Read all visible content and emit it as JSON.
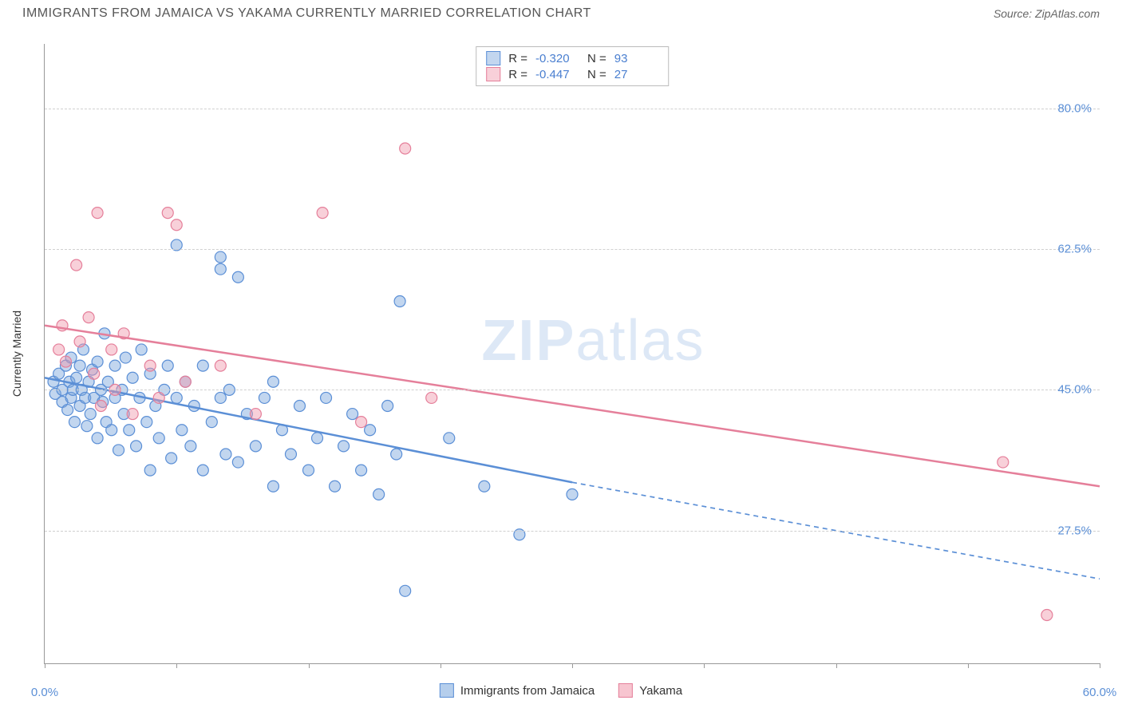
{
  "title": "IMMIGRANTS FROM JAMAICA VS YAKAMA CURRENTLY MARRIED CORRELATION CHART",
  "source": "Source: ZipAtlas.com",
  "watermark_bold": "ZIP",
  "watermark_light": "atlas",
  "y_axis_label": "Currently Married",
  "chart": {
    "type": "scatter",
    "xlim": [
      0,
      60
    ],
    "ylim": [
      11,
      88
    ],
    "x_ticks": [
      0,
      7.5,
      15,
      22.5,
      30,
      37.5,
      45,
      52.5,
      60
    ],
    "x_tick_labels": {
      "0": "0.0%",
      "60": "60.0%"
    },
    "y_gridlines": [
      27.5,
      45.0,
      62.5,
      80.0
    ],
    "y_tick_labels": [
      "27.5%",
      "45.0%",
      "62.5%",
      "80.0%"
    ],
    "background": "#ffffff",
    "grid_color": "#d0d0d0",
    "axis_color": "#999999",
    "point_radius": 7,
    "series": [
      {
        "name": "Immigrants from Jamaica",
        "color_fill": "rgba(120,165,220,0.45)",
        "color_stroke": "#5b8fd6",
        "r_label": "-0.320",
        "n_label": "93",
        "trend": {
          "solid": {
            "x1": 0,
            "y1": 46.5,
            "x2": 30,
            "y2": 33.5
          },
          "dashed": {
            "x1": 30,
            "y1": 33.5,
            "x2": 60,
            "y2": 21.5
          },
          "width": 2.5
        },
        "points": [
          [
            0.5,
            46
          ],
          [
            0.6,
            44.5
          ],
          [
            0.8,
            47
          ],
          [
            1.0,
            45
          ],
          [
            1.0,
            43.5
          ],
          [
            1.2,
            48
          ],
          [
            1.3,
            42.5
          ],
          [
            1.4,
            46
          ],
          [
            1.5,
            44
          ],
          [
            1.5,
            49
          ],
          [
            1.6,
            45
          ],
          [
            1.7,
            41
          ],
          [
            1.8,
            46.5
          ],
          [
            2.0,
            43
          ],
          [
            2.0,
            48
          ],
          [
            2.1,
            45
          ],
          [
            2.2,
            50
          ],
          [
            2.3,
            44
          ],
          [
            2.4,
            40.5
          ],
          [
            2.5,
            46
          ],
          [
            2.6,
            42
          ],
          [
            2.7,
            47.5
          ],
          [
            2.8,
            44
          ],
          [
            3.0,
            48.5
          ],
          [
            3.0,
            39
          ],
          [
            3.2,
            45
          ],
          [
            3.3,
            43.5
          ],
          [
            3.4,
            52
          ],
          [
            3.5,
            41
          ],
          [
            3.6,
            46
          ],
          [
            3.8,
            40
          ],
          [
            4.0,
            48
          ],
          [
            4.0,
            44
          ],
          [
            4.2,
            37.5
          ],
          [
            4.4,
            45
          ],
          [
            4.5,
            42
          ],
          [
            4.6,
            49
          ],
          [
            4.8,
            40
          ],
          [
            5.0,
            46.5
          ],
          [
            5.2,
            38
          ],
          [
            5.4,
            44
          ],
          [
            5.5,
            50
          ],
          [
            5.8,
            41
          ],
          [
            6.0,
            47
          ],
          [
            6.0,
            35
          ],
          [
            6.3,
            43
          ],
          [
            6.5,
            39
          ],
          [
            6.8,
            45
          ],
          [
            7.0,
            48
          ],
          [
            7.2,
            36.5
          ],
          [
            7.5,
            44
          ],
          [
            7.5,
            63
          ],
          [
            7.8,
            40
          ],
          [
            8.0,
            46
          ],
          [
            8.3,
            38
          ],
          [
            8.5,
            43
          ],
          [
            9.0,
            35
          ],
          [
            9.0,
            48
          ],
          [
            9.5,
            41
          ],
          [
            10.0,
            44
          ],
          [
            10.0,
            61.5
          ],
          [
            10.0,
            60
          ],
          [
            10.3,
            37
          ],
          [
            10.5,
            45
          ],
          [
            11.0,
            36
          ],
          [
            11.0,
            59
          ],
          [
            11.5,
            42
          ],
          [
            12.0,
            38
          ],
          [
            12.5,
            44
          ],
          [
            13.0,
            33
          ],
          [
            13.0,
            46
          ],
          [
            13.5,
            40
          ],
          [
            14.0,
            37
          ],
          [
            14.5,
            43
          ],
          [
            15.0,
            35
          ],
          [
            15.5,
            39
          ],
          [
            16.0,
            44
          ],
          [
            16.5,
            33
          ],
          [
            17.0,
            38
          ],
          [
            17.5,
            42
          ],
          [
            18.0,
            35
          ],
          [
            18.5,
            40
          ],
          [
            19.0,
            32
          ],
          [
            19.5,
            43
          ],
          [
            20.0,
            37
          ],
          [
            20.2,
            56
          ],
          [
            20.5,
            20
          ],
          [
            23.0,
            39
          ],
          [
            25.0,
            33
          ],
          [
            27.0,
            27
          ],
          [
            30.0,
            32
          ]
        ]
      },
      {
        "name": "Yakama",
        "color_fill": "rgba(240,150,170,0.45)",
        "color_stroke": "#e57f9a",
        "r_label": "-0.447",
        "n_label": "27",
        "trend": {
          "solid": {
            "x1": 0,
            "y1": 53,
            "x2": 60,
            "y2": 33
          },
          "width": 2.5
        },
        "points": [
          [
            0.8,
            50
          ],
          [
            1.0,
            53
          ],
          [
            1.2,
            48.5
          ],
          [
            1.8,
            60.5
          ],
          [
            2.0,
            51
          ],
          [
            2.5,
            54
          ],
          [
            2.8,
            47
          ],
          [
            3.0,
            67
          ],
          [
            3.2,
            43
          ],
          [
            3.8,
            50
          ],
          [
            4.0,
            45
          ],
          [
            4.5,
            52
          ],
          [
            5.0,
            42
          ],
          [
            6.0,
            48
          ],
          [
            6.5,
            44
          ],
          [
            7.0,
            67
          ],
          [
            7.5,
            65.5
          ],
          [
            8.0,
            46
          ],
          [
            10.0,
            48
          ],
          [
            12.0,
            42
          ],
          [
            15.8,
            67
          ],
          [
            18.0,
            41
          ],
          [
            20.5,
            75
          ],
          [
            22.0,
            44
          ],
          [
            54.5,
            36
          ],
          [
            57.0,
            17
          ]
        ]
      }
    ]
  },
  "legend_bottom": [
    {
      "swatch": "blue",
      "label": "Immigrants from Jamaica"
    },
    {
      "swatch": "pink",
      "label": "Yakama"
    }
  ]
}
